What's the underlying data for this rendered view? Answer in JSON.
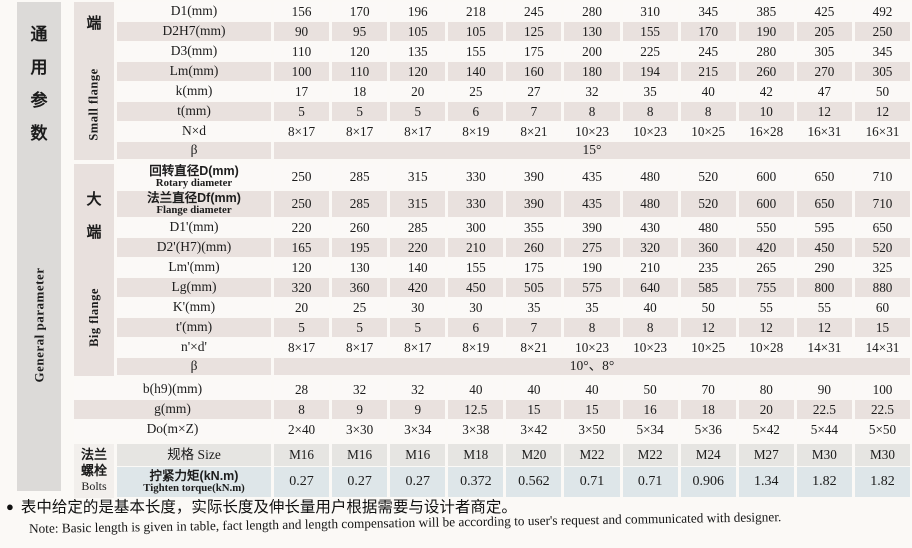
{
  "sidebar": {
    "zh": "通用参数",
    "en": "General parameter"
  },
  "table": {
    "sections": [
      {
        "name": "small-flange",
        "group": {
          "zh_lines": [
            "端"
          ],
          "en": "Small flange"
        },
        "rows": [
          {
            "label": "D1(mm)",
            "values": [
              "156",
              "170",
              "196",
              "218",
              "245",
              "280",
              "310",
              "345",
              "385",
              "425",
              "492"
            ]
          },
          {
            "label": "D2H7(mm)",
            "values": [
              "90",
              "95",
              "105",
              "105",
              "125",
              "130",
              "155",
              "170",
              "190",
              "205",
              "250"
            ]
          },
          {
            "label": "D3(mm)",
            "values": [
              "110",
              "120",
              "135",
              "155",
              "175",
              "200",
              "225",
              "245",
              "280",
              "305",
              "345"
            ]
          },
          {
            "label": "Lm(mm)",
            "values": [
              "100",
              "110",
              "120",
              "140",
              "160",
              "180",
              "194",
              "215",
              "260",
              "270",
              "305"
            ]
          },
          {
            "label": "k(mm)",
            "values": [
              "17",
              "18",
              "20",
              "25",
              "27",
              "32",
              "35",
              "40",
              "42",
              "47",
              "50"
            ]
          },
          {
            "label": "t(mm)",
            "values": [
              "5",
              "5",
              "5",
              "6",
              "7",
              "8",
              "8",
              "8",
              "10",
              "12",
              "12"
            ]
          },
          {
            "label": "N×d",
            "values": [
              "8×17",
              "8×17",
              "8×17",
              "8×19",
              "8×21",
              "10×23",
              "10×23",
              "10×25",
              "16×28",
              "16×31",
              "16×31"
            ]
          },
          {
            "label": "β",
            "merged": "15°"
          }
        ]
      },
      {
        "name": "big-flange",
        "group": {
          "zh_lines": [
            "大",
            "端"
          ],
          "en": "Big flange"
        },
        "rows": [
          {
            "label": "回转直径D(mm)",
            "sublabel": "Rotary diameter",
            "values": [
              "250",
              "285",
              "315",
              "330",
              "390",
              "435",
              "480",
              "520",
              "600",
              "650",
              "710"
            ]
          },
          {
            "label": "法兰直径Df(mm)",
            "sublabel": "Flange diameter",
            "values": [
              "250",
              "285",
              "315",
              "330",
              "390",
              "435",
              "480",
              "520",
              "600",
              "650",
              "710"
            ]
          },
          {
            "label": "D1'(mm)",
            "values": [
              "220",
              "260",
              "285",
              "300",
              "355",
              "390",
              "430",
              "480",
              "550",
              "595",
              "650"
            ]
          },
          {
            "label": "D2'(H7)(mm)",
            "values": [
              "165",
              "195",
              "220",
              "210",
              "260",
              "275",
              "320",
              "360",
              "420",
              "450",
              "520"
            ]
          },
          {
            "label": "Lm'(mm)",
            "values": [
              "120",
              "130",
              "140",
              "155",
              "175",
              "190",
              "210",
              "235",
              "265",
              "290",
              "325"
            ]
          },
          {
            "label": "Lg(mm)",
            "values": [
              "320",
              "360",
              "420",
              "450",
              "505",
              "575",
              "640",
              "585",
              "755",
              "800",
              "880"
            ]
          },
          {
            "label": "K'(mm)",
            "values": [
              "20",
              "25",
              "30",
              "30",
              "35",
              "35",
              "40",
              "50",
              "55",
              "55",
              "60"
            ]
          },
          {
            "label": "t'(mm)",
            "values": [
              "5",
              "5",
              "5",
              "6",
              "7",
              "8",
              "8",
              "12",
              "12",
              "12",
              "15"
            ]
          },
          {
            "label": "n'×d'",
            "values": [
              "8×17",
              "8×17",
              "8×17",
              "8×19",
              "8×21",
              "10×23",
              "10×23",
              "10×25",
              "10×28",
              "14×31",
              "14×31"
            ]
          },
          {
            "label": "β",
            "merged": "10°、8°"
          }
        ]
      },
      {
        "name": "common",
        "group": null,
        "rows": [
          {
            "label": "b(h9)(mm)",
            "values": [
              "28",
              "32",
              "32",
              "40",
              "40",
              "40",
              "50",
              "70",
              "80",
              "90",
              "100"
            ]
          },
          {
            "label": "g(mm)",
            "values": [
              "8",
              "9",
              "9",
              "12.5",
              "15",
              "15",
              "16",
              "18",
              "20",
              "22.5",
              "22.5"
            ]
          },
          {
            "label": "Do(m×Z)",
            "values": [
              "2×40",
              "3×30",
              "3×34",
              "3×38",
              "3×42",
              "3×50",
              "5×34",
              "5×36",
              "5×42",
              "5×44",
              "5×50"
            ]
          }
        ]
      },
      {
        "name": "bolts",
        "group": {
          "zh_lines": [
            "法兰",
            "螺栓"
          ],
          "en": "Bolts"
        },
        "rows": [
          {
            "label": "规格 Size",
            "values": [
              "M16",
              "M16",
              "M16",
              "M18",
              "M20",
              "M22",
              "M22",
              "M24",
              "M27",
              "M30",
              "M30"
            ]
          },
          {
            "label": "拧紧力矩(kN.m)",
            "sublabel": "Tighten torque(kN.m)",
            "values": [
              "0.27",
              "0.27",
              "0.27",
              "0.372",
              "0.562",
              "0.71",
              "0.71",
              "0.906",
              "1.34",
              "1.82",
              "1.82"
            ]
          }
        ]
      }
    ]
  },
  "note": {
    "bullet": "●",
    "zh": "表中给定的是基本长度，实际长度及伸长量用户根据需要与设计者商定。",
    "en": "Note: Basic length is given in table, fact length and length compensation will be according to user's request and communicated with designer."
  }
}
